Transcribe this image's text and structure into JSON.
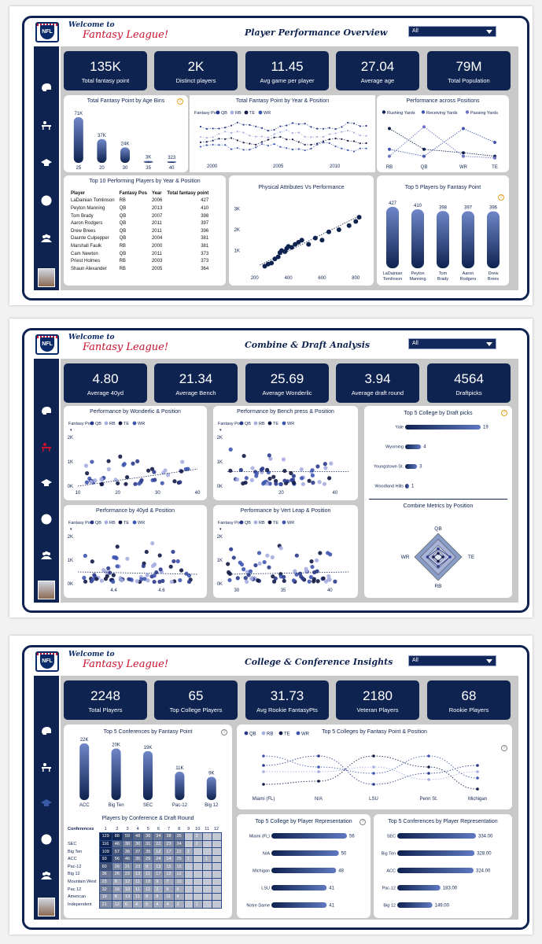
{
  "common": {
    "welcome": "Welcome to",
    "league": "Fantasy League!",
    "logo_text": "NFL",
    "slicer_value": "All"
  },
  "colors": {
    "navy": "#0f2350",
    "qb": "#2b3a8c",
    "rb": "#a7aee0",
    "te": "#121a45",
    "wr": "#3f56b0",
    "accent": "#e6a020"
  },
  "page1": {
    "title": "Player Performance Overview",
    "kpis": [
      {
        "value": "135K",
        "label": "Total fantasy point"
      },
      {
        "value": "2K",
        "label": "Distinct players"
      },
      {
        "value": "11.45",
        "label": "Avg game per player"
      },
      {
        "value": "27.04",
        "label": "Average age"
      },
      {
        "value": "79M",
        "label": "Total Population"
      }
    ],
    "age_bins_title": "Total Fantasy Point by Age Bins",
    "year_pos_title": "Total Fantasy Point by Year & Position",
    "legend_label": "Fantasy Pos",
    "positions": [
      "QB",
      "RB",
      "TE",
      "WR"
    ],
    "perf_pos_title": "Performance across Positions",
    "perf_pos_legend": [
      "Rushing Yards",
      "Receiving Yards",
      "Passing Yards"
    ],
    "top10_title": "Top 10 Performing Players by Year & Position",
    "top10_headers": [
      "Player",
      "Fantasy Pos",
      "Year",
      "Total fantasy point"
    ],
    "top10_rows": [
      [
        "LaDainian Tomlinson",
        "RB",
        "2006",
        "427"
      ],
      [
        "Peyton Manning",
        "QB",
        "2013",
        "410"
      ],
      [
        "Tom Brady",
        "QB",
        "2007",
        "398"
      ],
      [
        "Aaron Rodgers",
        "QB",
        "2011",
        "397"
      ],
      [
        "Drew Brees",
        "QB",
        "2011",
        "396"
      ],
      [
        "Daunte Culpepper",
        "QB",
        "2004",
        "381"
      ],
      [
        "Marshall Faulk",
        "RB",
        "2000",
        "381"
      ],
      [
        "Cam Newton",
        "QB",
        "2011",
        "373"
      ],
      [
        "Priest Holmes",
        "RB",
        "2003",
        "373"
      ],
      [
        "Shaun Alexander",
        "RB",
        "2005",
        "364"
      ]
    ],
    "phys_title": "Physical Attributes Vs Performance",
    "top5_title": "Top 5 Players by Fantasy Point"
  },
  "page2": {
    "title": "Combine & Draft Analysis",
    "kpis": [
      {
        "value": "4.80",
        "label": "Average 40yd"
      },
      {
        "value": "21.34",
        "label": "Average Bench"
      },
      {
        "value": "25.69",
        "label": "Average Wonderlic"
      },
      {
        "value": "3.94",
        "label": "Average draft round"
      },
      {
        "value": "4564",
        "label": "Draftpicks"
      }
    ],
    "scatter_titles": [
      "Performance by Wonderlic & Position",
      "Performance by Bench press & Position",
      "Performance by 40yd & Position",
      "Performance by Vert Leap & Position"
    ],
    "top5_college_title": "Top 5 College by Draft picks",
    "radar_title": "Combine Metrics by Position",
    "radar_axes": [
      "QB",
      "TE",
      "RB",
      "WR"
    ]
  },
  "page3": {
    "title": "College & Conference Insights",
    "kpis": [
      {
        "value": "2248",
        "label": "Total Players"
      },
      {
        "value": "65",
        "label": "Top College Players"
      },
      {
        "value": "31.73",
        "label": "Avg Rookie FantasyPts"
      },
      {
        "value": "2180",
        "label": "Veteran Players"
      },
      {
        "value": "68",
        "label": "Rookie Players"
      }
    ],
    "conf_title": "Top 5 Conferences by Fantasy Point",
    "colleges_title": "Top 5 Colleges by Fantasy Point & Position",
    "heat_title": "Players by Conference & Draft Round",
    "heat_corner": "Conferences",
    "rep_college_title": "Top 5 College by Player Representation",
    "rep_conf_title": "Top 5 Conferences by Player Representation",
    "heat": {
      "rounds": [
        "1",
        "2",
        "3",
        "4",
        "5",
        "6",
        "7",
        "8",
        "9",
        "10",
        "11",
        "12"
      ],
      "rows": [
        {
          "name": "",
          "vals": [
            "129",
            "88",
            "59",
            "48",
            "36",
            "34",
            "38",
            "35",
            "",
            "2",
            "",
            ""
          ]
        },
        {
          "name": "SEC",
          "vals": [
            "116",
            "46",
            "30",
            "30",
            "31",
            "22",
            "23",
            "34",
            "",
            "2",
            "",
            ""
          ]
        },
        {
          "name": "Big Ten",
          "vals": [
            "109",
            "57",
            "36",
            "37",
            "35",
            "12",
            "17",
            "22",
            "3",
            "",
            "",
            ""
          ]
        },
        {
          "name": "ACC",
          "vals": [
            "93",
            "56",
            "46",
            "35",
            "29",
            "24",
            "14",
            "25",
            "1",
            "",
            "1",
            ""
          ]
        },
        {
          "name": "Pac-12",
          "vals": [
            "60",
            "26",
            "21",
            "23",
            "9",
            "13",
            "15",
            "15",
            "",
            "",
            "",
            ""
          ]
        },
        {
          "name": "Big 12",
          "vals": [
            "36",
            "26",
            "23",
            "13",
            "11",
            "17",
            "12",
            "12",
            "",
            "",
            "",
            ""
          ]
        },
        {
          "name": "Mountain West",
          "vals": [
            "23",
            "8",
            "12",
            "11",
            "18",
            "9",
            "7",
            "10",
            "",
            "",
            "",
            ""
          ]
        },
        {
          "name": "Pac 12",
          "vals": [
            "32",
            "16",
            "10",
            "11",
            "11",
            "2",
            "9",
            "6",
            "",
            "",
            "",
            ""
          ]
        },
        {
          "name": "American",
          "vals": [
            "19",
            "8",
            "13",
            "11",
            "8",
            "8",
            "11",
            "4",
            "",
            "",
            "",
            ""
          ]
        },
        {
          "name": "Independent",
          "vals": [
            "21",
            "12",
            "6",
            "4",
            "5",
            "4",
            "4",
            "3",
            "",
            "1",
            "",
            ""
          ]
        }
      ]
    }
  },
  "chart_data": [
    {
      "type": "bar",
      "title": "Total Fantasy Point by Age Bins",
      "categories": [
        "25",
        "20",
        "30",
        "35",
        "40"
      ],
      "values": [
        71000,
        37000,
        24000,
        3000,
        323
      ],
      "labels": [
        "71K",
        "37K",
        "24K",
        "3K",
        "323"
      ]
    },
    {
      "type": "line",
      "title": "Total Fantasy Point by Year & Position",
      "x_ticks": [
        "2000",
        "2005",
        "2010"
      ],
      "series": [
        {
          "name": "QB"
        },
        {
          "name": "RB"
        },
        {
          "name": "TE"
        },
        {
          "name": "WR"
        }
      ]
    },
    {
      "type": "line",
      "title": "Performance across Positions",
      "categories": [
        "RB",
        "QB",
        "WR",
        "TE"
      ],
      "series": [
        {
          "name": "Rushing Yards",
          "values": [
            0.9,
            0.3,
            0.2,
            0.1
          ]
        },
        {
          "name": "Receiving Yards",
          "values": [
            0.3,
            0.1,
            0.9,
            0.5
          ]
        },
        {
          "name": "Passing Yards",
          "values": [
            0.1,
            0.95,
            0.1,
            0.05
          ]
        }
      ]
    },
    {
      "type": "scatter",
      "title": "Physical Attributes Vs Performance",
      "x_ticks": [
        "200",
        "400",
        "600",
        "800"
      ],
      "y_ticks": [
        "1K",
        "2K",
        "3K"
      ],
      "xlim": [
        150,
        850
      ],
      "ylim": [
        0,
        3400
      ],
      "points": [
        [
          260,
          250
        ],
        [
          280,
          350
        ],
        [
          300,
          400
        ],
        [
          320,
          600
        ],
        [
          340,
          700
        ],
        [
          350,
          900
        ],
        [
          360,
          1000
        ],
        [
          380,
          950
        ],
        [
          390,
          1100
        ],
        [
          400,
          1200
        ],
        [
          420,
          1150
        ],
        [
          440,
          1300
        ],
        [
          460,
          1400
        ],
        [
          480,
          1500
        ],
        [
          520,
          1300
        ],
        [
          560,
          1600
        ],
        [
          600,
          1500
        ],
        [
          640,
          1900
        ],
        [
          700,
          2000
        ],
        [
          760,
          2200
        ],
        [
          800,
          2400
        ],
        [
          820,
          2600
        ]
      ]
    },
    {
      "type": "bar",
      "title": "Top 5 Players by Fantasy Point",
      "categories": [
        "LaDainian Tomlinson",
        "Peyton Manning",
        "Tom Brady",
        "Aaron Rodgers",
        "Drew Brees"
      ],
      "values": [
        427,
        410,
        398,
        397,
        396
      ]
    },
    {
      "type": "scatter",
      "title": "Performance by Wonderlic & Position",
      "x_ticks": [
        "10",
        "20",
        "30",
        "40"
      ],
      "y_ticks": [
        "0K",
        "1K",
        "2K"
      ],
      "xlim": [
        10,
        40
      ],
      "ylim": [
        0,
        2000
      ]
    },
    {
      "type": "scatter",
      "title": "Performance by Bench press & Position",
      "x_ticks": [
        "20",
        "40"
      ],
      "y_ticks": [
        "0K",
        "1K",
        "2K"
      ],
      "xlim": [
        0,
        45
      ],
      "ylim": [
        0,
        2000
      ]
    },
    {
      "type": "scatter",
      "title": "Performance by 40yd & Position",
      "x_ticks": [
        "4.4",
        "4.6"
      ],
      "y_ticks": [
        "0K",
        "1K",
        "2K"
      ],
      "xlim": [
        4.25,
        4.75
      ],
      "ylim": [
        0,
        2000
      ]
    },
    {
      "type": "scatter",
      "title": "Performance by Vert Leap & Position",
      "x_ticks": [
        "30",
        "35",
        "40"
      ],
      "y_ticks": [
        "0K",
        "1K",
        "2K"
      ],
      "xlim": [
        29,
        42
      ],
      "ylim": [
        0,
        2000
      ]
    },
    {
      "type": "bar",
      "title": "Top 5 College by Draft picks",
      "categories": [
        "Yale",
        "Wyoming",
        "Youngstown St.",
        "Woodland Hills"
      ],
      "values": [
        19,
        4,
        3,
        1
      ]
    },
    {
      "type": "radar",
      "title": "Combine Metrics by Position",
      "categories": [
        "QB",
        "TE",
        "RB",
        "WR"
      ]
    },
    {
      "type": "bar",
      "title": "Top 5 Conferences by Fantasy Point",
      "categories": [
        "ACC",
        "Big Ten",
        "SEC",
        "Pac-12",
        "Big 12"
      ],
      "values": [
        22000,
        20000,
        19000,
        11000,
        9000
      ],
      "labels": [
        "22K",
        "20K",
        "19K",
        "11K",
        "9K"
      ]
    },
    {
      "type": "line",
      "title": "Top 5 Colleges by Fantasy Point & Position",
      "categories": [
        "Miami (FL)",
        "N/A",
        "LSU",
        "Penn St.",
        "Michigan"
      ]
    },
    {
      "type": "bar",
      "title": "Top 5 College by Player Representation",
      "categories": [
        "Miami (FL)",
        "N/A",
        "Michigan",
        "LSU",
        "Notre Dame"
      ],
      "values": [
        56,
        50,
        48,
        41,
        41
      ]
    },
    {
      "type": "bar",
      "title": "Top 5 Conferences by Player Representation",
      "categories": [
        "SEC",
        "Big Ten",
        "ACC",
        "Pac-12",
        "Big 12"
      ],
      "values": [
        334,
        328,
        324,
        183,
        149
      ],
      "labels": [
        "334.00",
        "328.00",
        "324.00",
        "183.00",
        "149.00"
      ]
    }
  ]
}
